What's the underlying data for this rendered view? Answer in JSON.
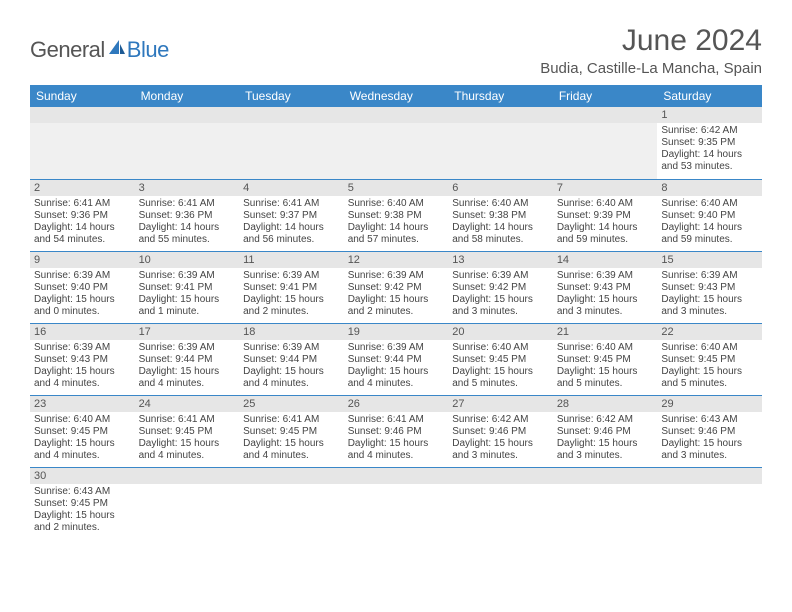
{
  "brand": {
    "general": "General",
    "blue": "Blue"
  },
  "title": "June 2024",
  "location": "Budia, Castille-La Mancha, Spain",
  "colors": {
    "header_bg": "#3a87c8",
    "header_text": "#ffffff",
    "daynum_bg": "#e6e6e6",
    "cell_border": "#3a87c8",
    "logo_blue": "#2f78bd"
  },
  "weekdays": [
    "Sunday",
    "Monday",
    "Tuesday",
    "Wednesday",
    "Thursday",
    "Friday",
    "Saturday"
  ],
  "weeks": [
    [
      null,
      null,
      null,
      null,
      null,
      null,
      {
        "n": "1",
        "sr": "Sunrise: 6:42 AM",
        "ss": "Sunset: 9:35 PM",
        "dl": "Daylight: 14 hours and 53 minutes."
      }
    ],
    [
      {
        "n": "2",
        "sr": "Sunrise: 6:41 AM",
        "ss": "Sunset: 9:36 PM",
        "dl": "Daylight: 14 hours and 54 minutes."
      },
      {
        "n": "3",
        "sr": "Sunrise: 6:41 AM",
        "ss": "Sunset: 9:36 PM",
        "dl": "Daylight: 14 hours and 55 minutes."
      },
      {
        "n": "4",
        "sr": "Sunrise: 6:41 AM",
        "ss": "Sunset: 9:37 PM",
        "dl": "Daylight: 14 hours and 56 minutes."
      },
      {
        "n": "5",
        "sr": "Sunrise: 6:40 AM",
        "ss": "Sunset: 9:38 PM",
        "dl": "Daylight: 14 hours and 57 minutes."
      },
      {
        "n": "6",
        "sr": "Sunrise: 6:40 AM",
        "ss": "Sunset: 9:38 PM",
        "dl": "Daylight: 14 hours and 58 minutes."
      },
      {
        "n": "7",
        "sr": "Sunrise: 6:40 AM",
        "ss": "Sunset: 9:39 PM",
        "dl": "Daylight: 14 hours and 59 minutes."
      },
      {
        "n": "8",
        "sr": "Sunrise: 6:40 AM",
        "ss": "Sunset: 9:40 PM",
        "dl": "Daylight: 14 hours and 59 minutes."
      }
    ],
    [
      {
        "n": "9",
        "sr": "Sunrise: 6:39 AM",
        "ss": "Sunset: 9:40 PM",
        "dl": "Daylight: 15 hours and 0 minutes."
      },
      {
        "n": "10",
        "sr": "Sunrise: 6:39 AM",
        "ss": "Sunset: 9:41 PM",
        "dl": "Daylight: 15 hours and 1 minute."
      },
      {
        "n": "11",
        "sr": "Sunrise: 6:39 AM",
        "ss": "Sunset: 9:41 PM",
        "dl": "Daylight: 15 hours and 2 minutes."
      },
      {
        "n": "12",
        "sr": "Sunrise: 6:39 AM",
        "ss": "Sunset: 9:42 PM",
        "dl": "Daylight: 15 hours and 2 minutes."
      },
      {
        "n": "13",
        "sr": "Sunrise: 6:39 AM",
        "ss": "Sunset: 9:42 PM",
        "dl": "Daylight: 15 hours and 3 minutes."
      },
      {
        "n": "14",
        "sr": "Sunrise: 6:39 AM",
        "ss": "Sunset: 9:43 PM",
        "dl": "Daylight: 15 hours and 3 minutes."
      },
      {
        "n": "15",
        "sr": "Sunrise: 6:39 AM",
        "ss": "Sunset: 9:43 PM",
        "dl": "Daylight: 15 hours and 3 minutes."
      }
    ],
    [
      {
        "n": "16",
        "sr": "Sunrise: 6:39 AM",
        "ss": "Sunset: 9:43 PM",
        "dl": "Daylight: 15 hours and 4 minutes."
      },
      {
        "n": "17",
        "sr": "Sunrise: 6:39 AM",
        "ss": "Sunset: 9:44 PM",
        "dl": "Daylight: 15 hours and 4 minutes."
      },
      {
        "n": "18",
        "sr": "Sunrise: 6:39 AM",
        "ss": "Sunset: 9:44 PM",
        "dl": "Daylight: 15 hours and 4 minutes."
      },
      {
        "n": "19",
        "sr": "Sunrise: 6:39 AM",
        "ss": "Sunset: 9:44 PM",
        "dl": "Daylight: 15 hours and 4 minutes."
      },
      {
        "n": "20",
        "sr": "Sunrise: 6:40 AM",
        "ss": "Sunset: 9:45 PM",
        "dl": "Daylight: 15 hours and 5 minutes."
      },
      {
        "n": "21",
        "sr": "Sunrise: 6:40 AM",
        "ss": "Sunset: 9:45 PM",
        "dl": "Daylight: 15 hours and 5 minutes."
      },
      {
        "n": "22",
        "sr": "Sunrise: 6:40 AM",
        "ss": "Sunset: 9:45 PM",
        "dl": "Daylight: 15 hours and 5 minutes."
      }
    ],
    [
      {
        "n": "23",
        "sr": "Sunrise: 6:40 AM",
        "ss": "Sunset: 9:45 PM",
        "dl": "Daylight: 15 hours and 4 minutes."
      },
      {
        "n": "24",
        "sr": "Sunrise: 6:41 AM",
        "ss": "Sunset: 9:45 PM",
        "dl": "Daylight: 15 hours and 4 minutes."
      },
      {
        "n": "25",
        "sr": "Sunrise: 6:41 AM",
        "ss": "Sunset: 9:45 PM",
        "dl": "Daylight: 15 hours and 4 minutes."
      },
      {
        "n": "26",
        "sr": "Sunrise: 6:41 AM",
        "ss": "Sunset: 9:46 PM",
        "dl": "Daylight: 15 hours and 4 minutes."
      },
      {
        "n": "27",
        "sr": "Sunrise: 6:42 AM",
        "ss": "Sunset: 9:46 PM",
        "dl": "Daylight: 15 hours and 3 minutes."
      },
      {
        "n": "28",
        "sr": "Sunrise: 6:42 AM",
        "ss": "Sunset: 9:46 PM",
        "dl": "Daylight: 15 hours and 3 minutes."
      },
      {
        "n": "29",
        "sr": "Sunrise: 6:43 AM",
        "ss": "Sunset: 9:46 PM",
        "dl": "Daylight: 15 hours and 3 minutes."
      }
    ],
    [
      {
        "n": "30",
        "sr": "Sunrise: 6:43 AM",
        "ss": "Sunset: 9:45 PM",
        "dl": "Daylight: 15 hours and 2 minutes."
      },
      null,
      null,
      null,
      null,
      null,
      null
    ]
  ]
}
